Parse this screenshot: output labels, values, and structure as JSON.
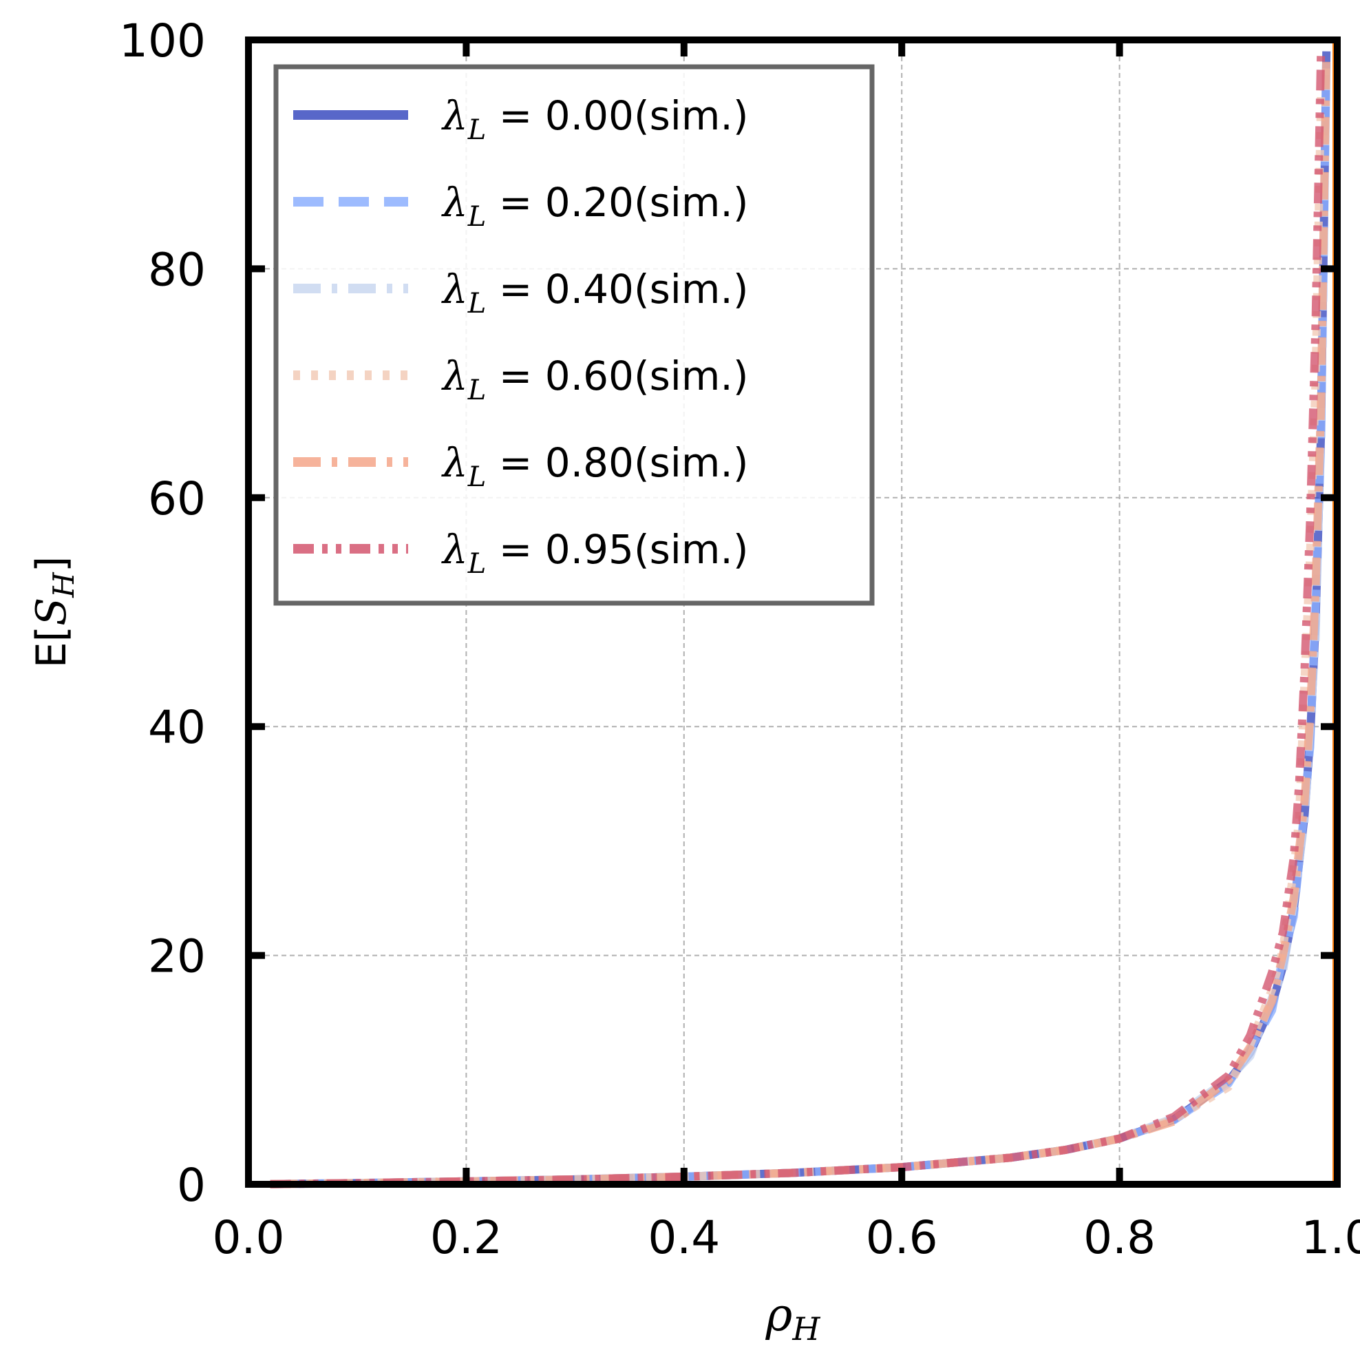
{
  "chart_data": {
    "type": "line",
    "title": "",
    "xlabel": "ρ",
    "xlabel_sub": "H",
    "ylabel_pre": "E[",
    "ylabel_var": "S",
    "ylabel_sub": "H",
    "ylabel_post": "]",
    "xlim": [
      0.0,
      1.0
    ],
    "ylim": [
      0,
      100
    ],
    "xticks": [
      0.0,
      0.2,
      0.4,
      0.6,
      0.8,
      1.0
    ],
    "xtick_labels": [
      "0.0",
      "0.2",
      "0.4",
      "0.6",
      "0.8",
      "1.0"
    ],
    "yticks": [
      0,
      20,
      40,
      60,
      80,
      100
    ],
    "ytick_labels": [
      "0",
      "20",
      "40",
      "60",
      "80",
      "100"
    ],
    "grid": true,
    "legend_position": "top-left",
    "asymptote": {
      "x": 1.0,
      "color": "#ff7f0e"
    },
    "series": [
      {
        "name": "λL = 0.00(sim.)",
        "legend_lambda": "λ",
        "legend_sub": "L",
        "legend_rest": " = 0.00(sim.)",
        "color": "#3b4cc0",
        "dash": "solid",
        "x": [
          0.02,
          0.1,
          0.2,
          0.3,
          0.4,
          0.5,
          0.6,
          0.7,
          0.75,
          0.8,
          0.85,
          0.9,
          0.92,
          0.94,
          0.95,
          0.96,
          0.97,
          0.975,
          0.98,
          0.985,
          0.99
        ],
        "y": [
          0.02,
          0.11,
          0.25,
          0.43,
          0.67,
          1.0,
          1.5,
          2.33,
          3.0,
          4.0,
          5.67,
          9.0,
          11.5,
          15.7,
          19.0,
          24.0,
          32.3,
          39.0,
          49.0,
          65.7,
          99.0
        ]
      },
      {
        "name": "λL = 0.20(sim.)",
        "legend_lambda": "λ",
        "legend_sub": "L",
        "legend_rest": " = 0.20(sim.)",
        "color": "#8caffe",
        "dash": "dashed",
        "x": [
          0.02,
          0.1,
          0.2,
          0.3,
          0.4,
          0.5,
          0.6,
          0.7,
          0.75,
          0.8,
          0.85,
          0.9,
          0.92,
          0.94,
          0.95,
          0.96,
          0.97,
          0.975,
          0.98,
          0.985,
          0.99
        ],
        "y": [
          0.02,
          0.11,
          0.25,
          0.43,
          0.67,
          1.0,
          1.5,
          2.33,
          3.0,
          4.0,
          5.6,
          8.8,
          11.8,
          15.2,
          19.8,
          23.4,
          33.0,
          38.2,
          50.5,
          64.8,
          98.0
        ]
      },
      {
        "name": "λL = 0.40(sim.)",
        "legend_lambda": "λ",
        "legend_sub": "L",
        "legend_rest": " = 0.40(sim.)",
        "color": "#c9d7f0",
        "dash": "dashdot",
        "x": [
          0.02,
          0.1,
          0.2,
          0.3,
          0.4,
          0.5,
          0.6,
          0.7,
          0.75,
          0.8,
          0.85,
          0.9,
          0.92,
          0.94,
          0.95,
          0.96,
          0.97,
          0.975,
          0.98,
          0.985,
          0.99
        ],
        "y": [
          0.02,
          0.11,
          0.25,
          0.43,
          0.67,
          1.0,
          1.5,
          2.33,
          3.0,
          4.0,
          5.8,
          9.2,
          11.2,
          16.3,
          18.5,
          24.6,
          31.8,
          40.2,
          47.5,
          67.0,
          97.5
        ]
      },
      {
        "name": "λL = 0.60(sim.)",
        "legend_lambda": "λ",
        "legend_sub": "L",
        "legend_rest": " = 0.60(sim.)",
        "color": "#f2cbb7",
        "dash": "dotted",
        "x": [
          0.02,
          0.1,
          0.2,
          0.3,
          0.4,
          0.5,
          0.6,
          0.7,
          0.75,
          0.8,
          0.85,
          0.9,
          0.92,
          0.94,
          0.95,
          0.96,
          0.965,
          0.97,
          0.975,
          0.98,
          0.985
        ],
        "y": [
          0.02,
          0.11,
          0.25,
          0.43,
          0.67,
          1.0,
          1.5,
          2.33,
          3.0,
          4.0,
          5.7,
          8.5,
          12.2,
          17.0,
          20.5,
          27.5,
          32.0,
          44.0,
          55.0,
          70.0,
          95.0
        ]
      },
      {
        "name": "λL = 0.80(sim.)",
        "legend_lambda": "λ",
        "legend_sub": "L",
        "legend_rest": " = 0.80(sim.)",
        "color": "#f4a68a",
        "dash": "dashdot",
        "x": [
          0.02,
          0.1,
          0.2,
          0.3,
          0.4,
          0.5,
          0.6,
          0.7,
          0.75,
          0.8,
          0.85,
          0.9,
          0.92,
          0.94,
          0.95,
          0.96,
          0.97,
          0.975,
          0.98,
          0.985,
          0.99
        ],
        "y": [
          0.02,
          0.11,
          0.25,
          0.43,
          0.67,
          1.0,
          1.5,
          2.33,
          3.0,
          4.0,
          5.5,
          9.1,
          12.0,
          16.0,
          20.0,
          25.0,
          33.5,
          41.0,
          52.0,
          68.0,
          99.0
        ]
      },
      {
        "name": "λL = 0.95(sim.)",
        "legend_lambda": "λ",
        "legend_sub": "L",
        "legend_rest": " = 0.95(sim.)",
        "color": "#d3566f",
        "dash": "dashdotdot",
        "x": [
          0.02,
          0.1,
          0.2,
          0.3,
          0.4,
          0.5,
          0.6,
          0.7,
          0.75,
          0.8,
          0.85,
          0.9,
          0.92,
          0.94,
          0.95,
          0.96,
          0.965,
          0.97,
          0.975,
          0.98,
          0.985
        ],
        "y": [
          0.02,
          0.11,
          0.25,
          0.43,
          0.67,
          1.0,
          1.5,
          2.33,
          3.0,
          4.0,
          5.9,
          9.5,
          13.0,
          18.5,
          22.0,
          28.5,
          35.0,
          45.0,
          58.0,
          75.0,
          99.0
        ]
      }
    ]
  }
}
